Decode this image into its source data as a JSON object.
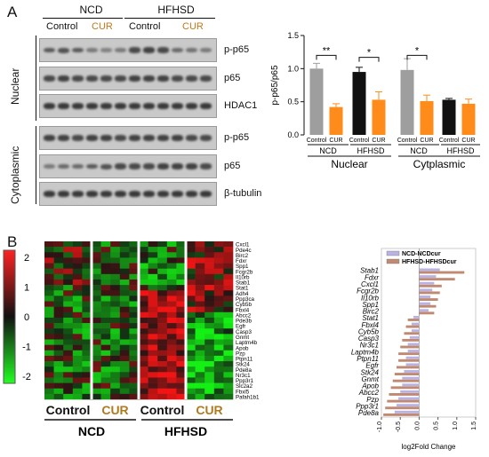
{
  "panelA": {
    "letter": "A",
    "groups": {
      "ncd": "NCD",
      "hfhsd": "HFHSD"
    },
    "subgroups": [
      "Control",
      "CUR",
      "Control",
      "CUR"
    ],
    "side_labels": {
      "nuclear": "Nuclear",
      "cytoplasmic": "Cytoplasmic"
    },
    "blot_labels": [
      "p-p65",
      "p65",
      "HDAC1",
      "p-p65",
      "p65",
      "β-tubulin"
    ]
  },
  "panelB": {
    "letter": "B",
    "colorbar_ticks": [
      "2",
      "1",
      "0",
      "-1",
      "-2"
    ],
    "heatmap_genes": [
      "Cxcl1",
      "Pde4c",
      "Birc2",
      "Fdxr",
      "Spp1",
      "Fcgr2b",
      "Il10rb",
      "Stab1",
      "Stat1",
      "Adh4",
      "Ppp3ca",
      "Cyb5b",
      "Fbxl4",
      "Abcc2",
      "Pde3b",
      "Egfr",
      "Casp3",
      "Gnmt",
      "Laptm4b",
      "Apob",
      "Pzp",
      "Ptpn11",
      "Stk24",
      "Pde8a",
      "Nr3c1",
      "Ppp3r1",
      "Slc2a2",
      "Fbxl5",
      "Pafah1b1"
    ],
    "heat_sub": [
      "Control",
      "CUR",
      "Control",
      "CUR"
    ],
    "heat_groups": [
      "NCD",
      "HFHSD"
    ]
  },
  "colors": {
    "gray": "#9e9e9e",
    "orange": "#ff8c1a",
    "black": "#111111",
    "bar_blue": "#b9b3e3",
    "bar_brown": "#c08a72"
  },
  "chart_data": [
    {
      "type": "bar",
      "ylabel": "p-p65/p65",
      "ylim": [
        0,
        1.5
      ],
      "yticks": [
        "0.0",
        "0.5",
        "1.0",
        "1.5"
      ],
      "categories": [
        "Control",
        "CUR",
        "Control",
        "CUR",
        "Control",
        "CUR",
        "Control",
        "CUR"
      ],
      "values": [
        1.0,
        0.42,
        0.95,
        0.53,
        0.98,
        0.51,
        0.53,
        0.47
      ],
      "errors": [
        0.08,
        0.05,
        0.07,
        0.12,
        0.17,
        0.09,
        0.02,
        0.07
      ],
      "groups": [
        "NCD",
        "HFHSD",
        "NCD",
        "HFHSD"
      ],
      "sections": [
        "Nuclear",
        "Cytplasmic"
      ],
      "significance": [
        "**",
        "*",
        "*"
      ]
    },
    {
      "type": "bar",
      "orientation": "horizontal",
      "xlabel": "log2Fold Change",
      "xlim": [
        -1.0,
        1.5
      ],
      "xticks": [
        "-1.0",
        "-0.5",
        "0.0",
        "0.5",
        "1.0",
        "1.5"
      ],
      "categories": [
        "Stab1",
        "Fdxr",
        "Cxcl1",
        "Fcgr2b",
        "Il10rb",
        "Spp1",
        "Birc2",
        "Stat1",
        "Fbxl4",
        "Cyb5b",
        "Casp3",
        "Nr3c1",
        "Laptm4b",
        "Ptpn11",
        "Egfr",
        "Stk24",
        "Gnmt",
        "Apob",
        "Abcc2",
        "Pzp",
        "Ppp3r1",
        "Pde8a"
      ],
      "series": [
        {
          "name": "NCD-NCDcur",
          "values": [
            0.55,
            0.45,
            0.4,
            0.35,
            0.3,
            0.3,
            0.25,
            -0.15,
            -0.2,
            -0.2,
            -0.25,
            -0.3,
            -0.3,
            -0.35,
            -0.35,
            -0.4,
            -0.45,
            -0.45,
            -0.5,
            -0.55,
            -0.6,
            -0.65
          ]
        },
        {
          "name": "HFHSD-HFHSDcur",
          "values": [
            1.2,
            0.95,
            0.6,
            0.55,
            0.5,
            0.45,
            0.4,
            -0.3,
            -0.35,
            -0.4,
            -0.45,
            -0.5,
            -0.55,
            -0.55,
            -0.6,
            -0.65,
            -0.7,
            -0.75,
            -0.8,
            -0.85,
            -0.9,
            -0.95
          ]
        }
      ]
    }
  ]
}
